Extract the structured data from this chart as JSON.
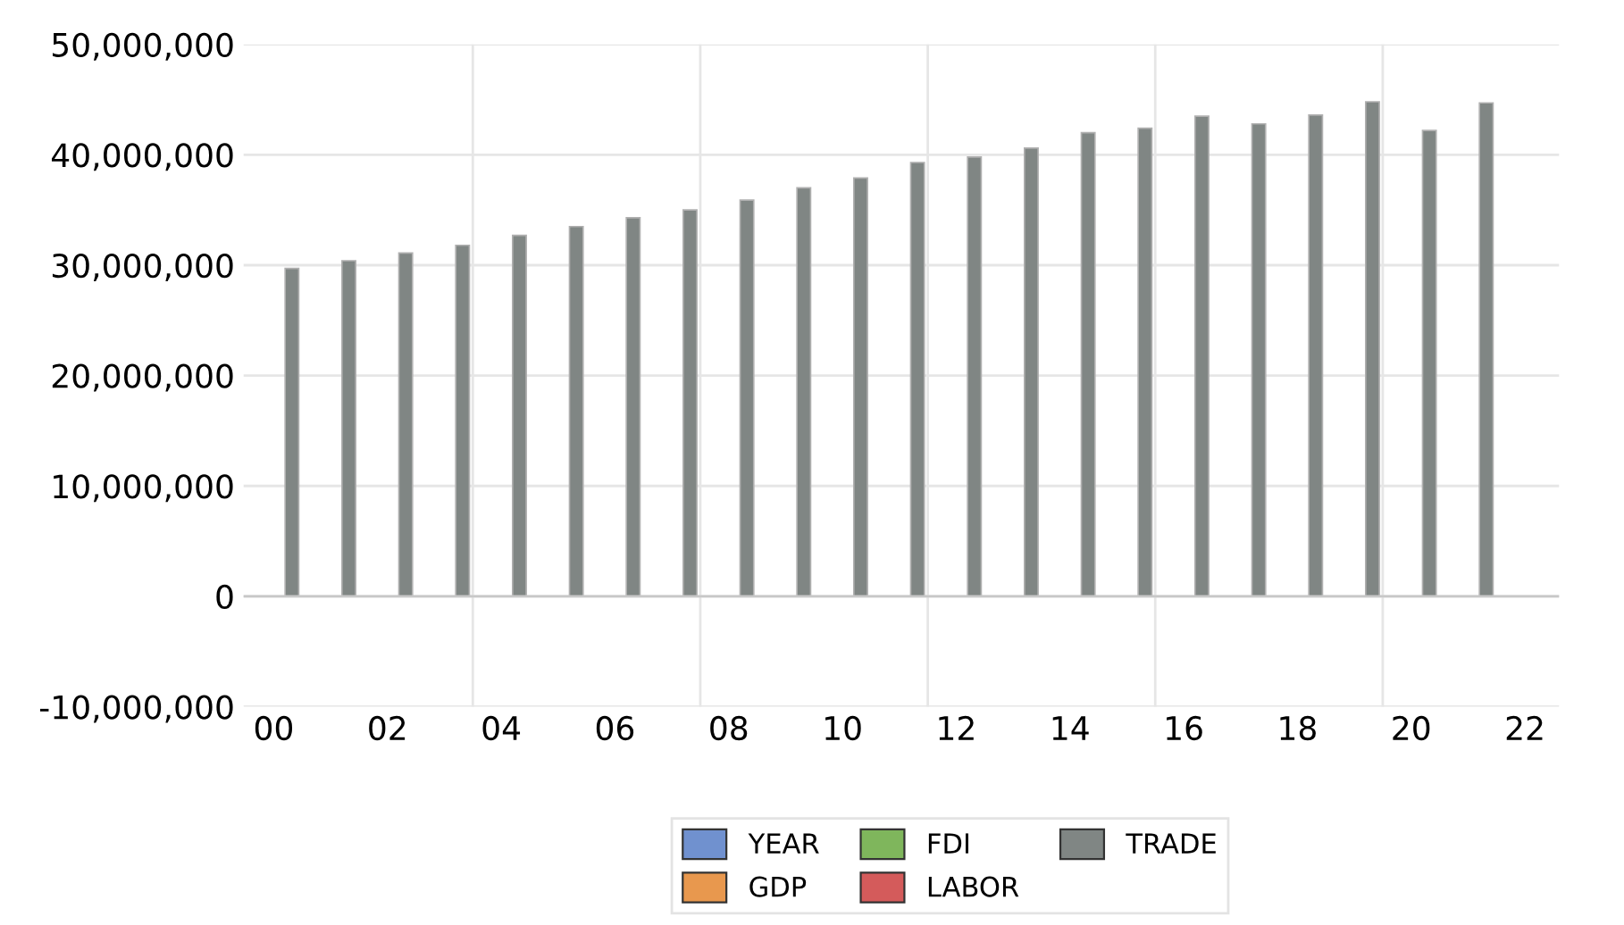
{
  "chart_data": {
    "type": "bar",
    "x": [
      0.32,
      1.32,
      2.32,
      3.32,
      4.32,
      5.32,
      6.32,
      7.32,
      8.32,
      9.32,
      10.32,
      11.32,
      12.32,
      13.32,
      14.32,
      15.32,
      16.32,
      17.32,
      18.32,
      19.32,
      20.32,
      21.32
    ],
    "series": [
      {
        "name": "YEAR",
        "color": "#7091cf",
        "values": [
          null,
          null,
          null,
          null,
          null,
          null,
          null,
          null,
          null,
          null,
          null,
          null,
          null,
          null,
          null,
          null,
          null,
          null,
          null,
          null,
          null,
          null
        ]
      },
      {
        "name": "GDP",
        "color": "#e8984e",
        "values": [
          null,
          null,
          null,
          null,
          null,
          null,
          null,
          null,
          null,
          null,
          null,
          null,
          null,
          null,
          null,
          null,
          null,
          null,
          null,
          null,
          null,
          null
        ]
      },
      {
        "name": "FDI",
        "color": "#7fb65c",
        "values": [
          null,
          null,
          null,
          null,
          null,
          null,
          null,
          null,
          null,
          null,
          null,
          null,
          null,
          null,
          null,
          null,
          null,
          null,
          null,
          null,
          null,
          null
        ]
      },
      {
        "name": "LABOR",
        "color": "#d45b5b",
        "values": [
          null,
          null,
          null,
          null,
          null,
          null,
          null,
          null,
          null,
          null,
          null,
          null,
          null,
          null,
          null,
          null,
          null,
          null,
          null,
          null,
          null,
          null
        ]
      },
      {
        "name": "TRADE",
        "color": "#808684",
        "values": [
          29700000,
          30400000,
          31100000,
          31800000,
          32700000,
          33500000,
          34300000,
          35000000,
          35900000,
          37000000,
          37900000,
          39300000,
          39800000,
          40600000,
          42000000,
          42400000,
          43500000,
          42800000,
          43600000,
          44800000,
          42200000,
          44700000
        ]
      }
    ],
    "xlim": [
      -0.53,
      22.6
    ],
    "xticks": [
      {
        "value": 0,
        "label": "00"
      },
      {
        "value": 2,
        "label": "02"
      },
      {
        "value": 4,
        "label": "04"
      },
      {
        "value": 6,
        "label": "06"
      },
      {
        "value": 8,
        "label": "08"
      },
      {
        "value": 10,
        "label": "10"
      },
      {
        "value": 12,
        "label": "12"
      },
      {
        "value": 14,
        "label": "14"
      },
      {
        "value": 16,
        "label": "16"
      },
      {
        "value": 18,
        "label": "18"
      },
      {
        "value": 20,
        "label": "20"
      },
      {
        "value": 22,
        "label": "22"
      }
    ],
    "ylim": [
      -10000000,
      50000000
    ],
    "yticks": [
      {
        "value": -10000000,
        "label": "-10,000,000"
      },
      {
        "value": 0,
        "label": "0"
      },
      {
        "value": 10000000,
        "label": "10,000,000"
      },
      {
        "value": 20000000,
        "label": "20,000,000"
      },
      {
        "value": 30000000,
        "label": "30,000,000"
      },
      {
        "value": 40000000,
        "label": "40,000,000"
      },
      {
        "value": 50000000,
        "label": "50,000,000"
      }
    ],
    "ref_lines": [
      {
        "axis": "x",
        "value": 3.5,
        "color": "#e6e6e6"
      },
      {
        "axis": "x",
        "value": 7.5,
        "color": "#e6e6e6"
      },
      {
        "axis": "x",
        "value": 11.5,
        "color": "#e6e6e6"
      },
      {
        "axis": "x",
        "value": 15.5,
        "color": "#e6e6e6"
      },
      {
        "axis": "x",
        "value": 19.5,
        "color": "#e6e6e6"
      },
      {
        "axis": "y",
        "value": 0,
        "color": "#c8c8c8"
      }
    ],
    "grid": "y",
    "legend": "bottom"
  }
}
